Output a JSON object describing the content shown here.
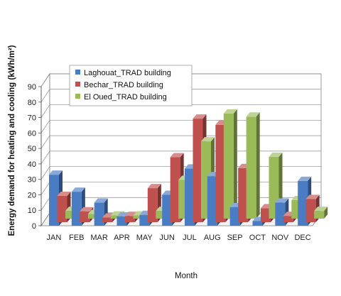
{
  "chart_data": {
    "type": "bar",
    "variant": "3d-clustered",
    "title": "",
    "xlabel": "Month",
    "ylabel": "Energy demand for heating and cooling (kWh/m²)",
    "ylim": [
      0,
      90
    ],
    "yticks": [
      0,
      10,
      20,
      30,
      40,
      50,
      60,
      70,
      80,
      90
    ],
    "grid": true,
    "legend_position": "top-left",
    "categories": [
      "JAN",
      "FEB",
      "MAR",
      "APR",
      "MAY",
      "JUN",
      "JUL",
      "AUG",
      "SEP",
      "OCT",
      "NOV",
      "DEC"
    ],
    "series": [
      {
        "name": "Laghouat_TRAD building",
        "color": "#4a7cc4",
        "values": [
          33,
          22,
          15,
          6,
          7,
          20,
          37,
          32,
          12,
          3,
          15,
          29
        ]
      },
      {
        "name": "Bechar_TRAD building",
        "color": "#c0504d",
        "values": [
          17,
          7,
          3,
          4,
          22,
          42,
          67,
          63,
          35,
          9,
          4,
          15
        ]
      },
      {
        "name": "El Oued_TRAD building",
        "color": "#9bbb59",
        "values": [
          5,
          3,
          2,
          2,
          5,
          25,
          50,
          68,
          66,
          40,
          12,
          5
        ]
      }
    ]
  }
}
